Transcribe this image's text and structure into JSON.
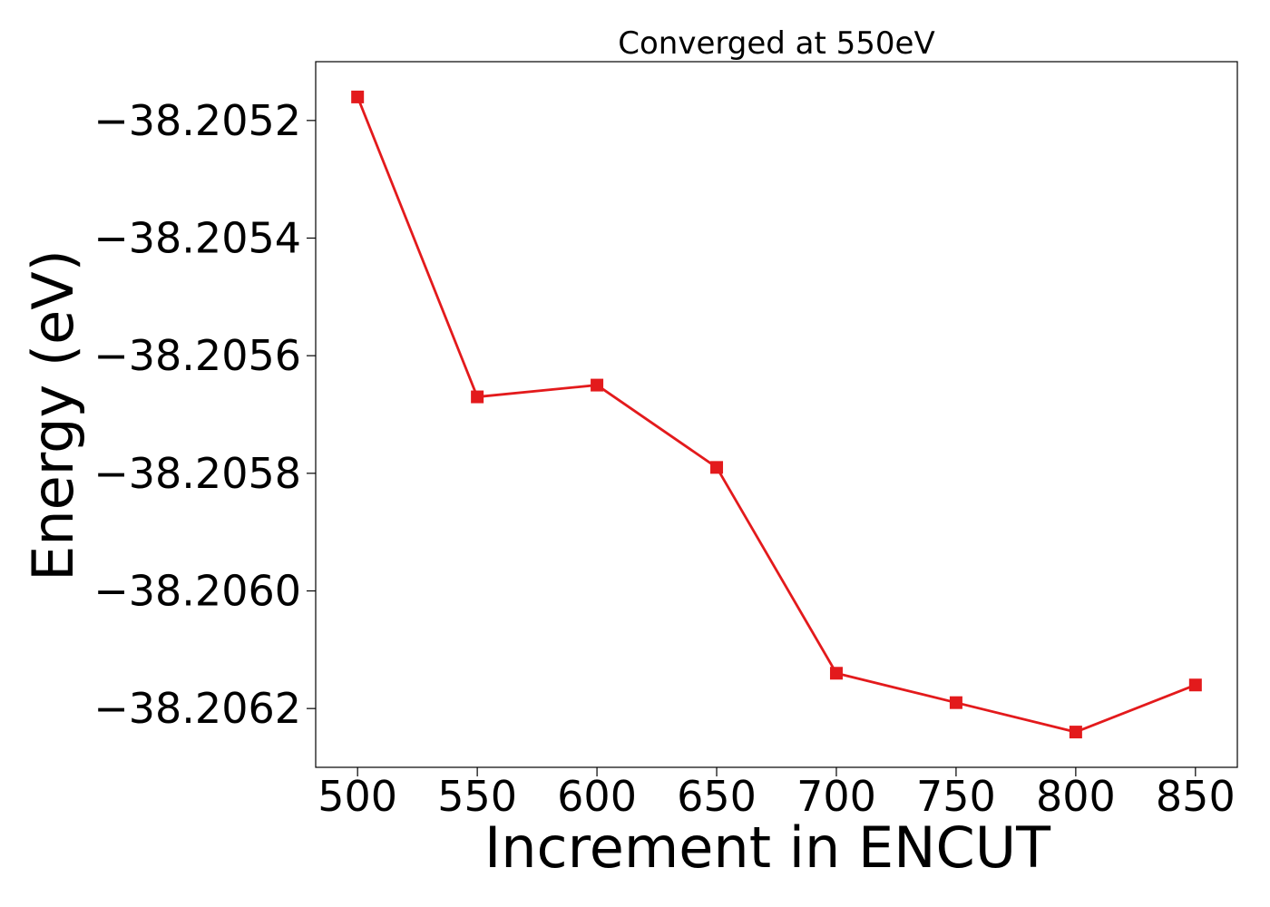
{
  "chart_data": {
    "type": "line",
    "title": "Converged at 550eV",
    "xlabel": "Increment in ENCUT",
    "ylabel": "Energy (eV)",
    "x": [
      500,
      550,
      600,
      650,
      700,
      750,
      800,
      850
    ],
    "series": [
      {
        "values": [
          -38.20516,
          -38.20567,
          -38.20565,
          -38.20579,
          -38.20614,
          -38.20619,
          -38.20624,
          -38.20616
        ],
        "color": "#e31a1c",
        "marker": "square"
      }
    ],
    "xlim": [
      482.5,
      867.5
    ],
    "ylim": [
      -38.2063,
      -38.2051
    ],
    "xticks": [
      500,
      550,
      600,
      650,
      700,
      750,
      800,
      850
    ],
    "xtick_labels": [
      "500",
      "550",
      "600",
      "650",
      "700",
      "750",
      "800",
      "850"
    ],
    "yticks": [
      -38.2052,
      -38.2054,
      -38.2056,
      -38.2058,
      -38.206,
      -38.2062
    ],
    "ytick_labels": [
      "−38.2052",
      "−38.2054",
      "−38.2056",
      "−38.2058",
      "−38.2060",
      "−38.2062"
    ],
    "grid": false,
    "legend": "none"
  }
}
